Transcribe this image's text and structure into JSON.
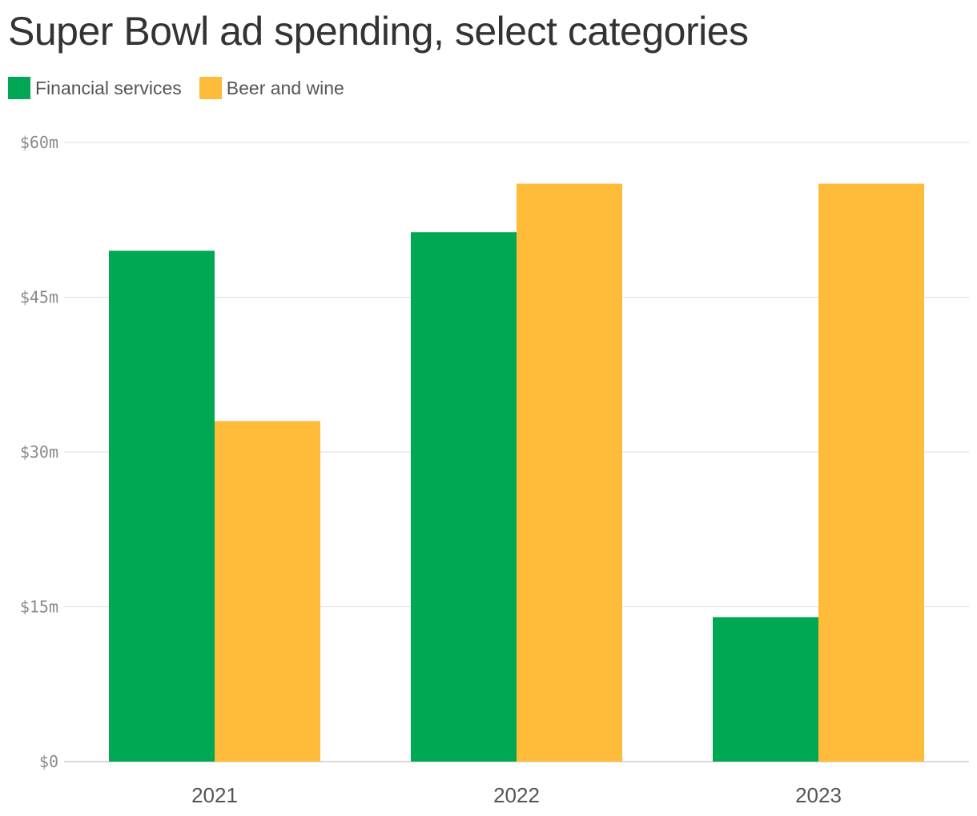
{
  "chart_data": {
    "type": "bar",
    "title": "Super Bowl ad spending, select categories",
    "categories": [
      "2021",
      "2022",
      "2023"
    ],
    "series": [
      {
        "name": "Financial services",
        "color": "#00a854",
        "values": [
          49.5,
          51.3,
          14
        ]
      },
      {
        "name": "Beer and wine",
        "color": "#ffbb3a",
        "values": [
          33,
          56,
          56
        ]
      }
    ],
    "ylim": [
      0,
      60
    ],
    "yticks": [
      0,
      15,
      30,
      45,
      60
    ],
    "ytick_labels": [
      "$0",
      "$15m",
      "$30m",
      "$45m",
      "$60m"
    ],
    "grid": true,
    "legend_position": "top-left",
    "xlabel": "",
    "ylabel": ""
  }
}
